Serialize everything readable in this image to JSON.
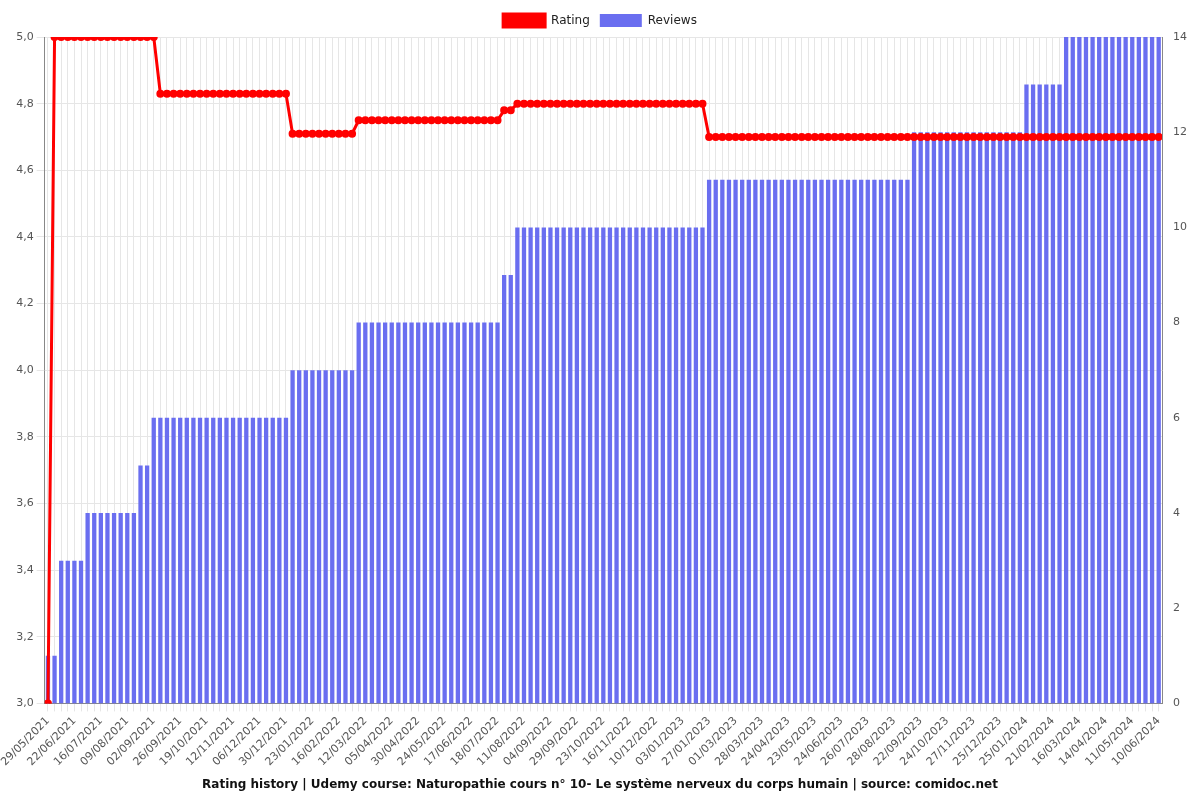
{
  "chart_data": {
    "type": "bar",
    "title": "Rating history | Udemy course: Naturopathie cours n° 10- Le système nerveux du corps humain | source: comidoc.net",
    "legend": "top",
    "grid": true,
    "categories": [
      "29/05/2021",
      null,
      null,
      null,
      "22/06/2021",
      null,
      null,
      null,
      "16/07/2021",
      null,
      null,
      null,
      "09/08/2021",
      null,
      null,
      null,
      "02/09/2021",
      null,
      null,
      null,
      "26/09/2021",
      null,
      null,
      null,
      "19/10/2021",
      null,
      null,
      null,
      "12/11/2021",
      null,
      null,
      null,
      "06/12/2021",
      null,
      null,
      null,
      "30/12/2021",
      null,
      null,
      null,
      "23/01/2022",
      null,
      null,
      null,
      "16/02/2022",
      null,
      null,
      null,
      "12/03/2022",
      null,
      null,
      null,
      "05/04/2022",
      null,
      null,
      null,
      "30/04/2022",
      null,
      null,
      null,
      "24/05/2022",
      null,
      null,
      null,
      "17/06/2022",
      null,
      null,
      null,
      "18/07/2022",
      null,
      null,
      null,
      "11/08/2022",
      null,
      null,
      null,
      "04/09/2022",
      null,
      null,
      null,
      "29/09/2022",
      null,
      null,
      null,
      "23/10/2022",
      null,
      null,
      null,
      "16/11/2022",
      null,
      null,
      null,
      "10/12/2022",
      null,
      null,
      null,
      "03/01/2023",
      null,
      null,
      null,
      "27/01/2023",
      null,
      null,
      null,
      "01/03/2023",
      null,
      null,
      null,
      "28/03/2023",
      null,
      null,
      null,
      "24/04/2023",
      null,
      null,
      null,
      "23/05/2023",
      null,
      null,
      null,
      "24/06/2023",
      null,
      null,
      null,
      "26/07/2023",
      null,
      null,
      null,
      "28/08/2023",
      null,
      null,
      null,
      "22/09/2023",
      null,
      null,
      null,
      "24/10/2023",
      null,
      null,
      null,
      "27/11/2023",
      null,
      null,
      null,
      "25/12/2023",
      null,
      null,
      null,
      "25/01/2024",
      null,
      null,
      null,
      "21/02/2024",
      null,
      null,
      null,
      "16/03/2024",
      null,
      null,
      null,
      "14/04/2024",
      null,
      null,
      null,
      "11/05/2024",
      null,
      null,
      null,
      "10/06/2024"
    ],
    "series": [
      {
        "name": "Rating",
        "type": "line",
        "color": "#ff0000",
        "marker": "circle",
        "values": [
          3.0,
          5,
          5,
          5,
          5,
          5,
          5,
          5,
          5,
          5,
          5,
          5,
          5,
          5,
          5,
          5,
          5,
          4.83,
          4.83,
          4.83,
          4.83,
          4.83,
          4.83,
          4.83,
          4.83,
          4.83,
          4.83,
          4.83,
          4.83,
          4.83,
          4.83,
          4.83,
          4.83,
          4.83,
          4.83,
          4.83,
          4.83,
          4.71,
          4.71,
          4.71,
          4.71,
          4.71,
          4.71,
          4.71,
          4.71,
          4.71,
          4.71,
          4.75,
          4.75,
          4.75,
          4.75,
          4.75,
          4.75,
          4.75,
          4.75,
          4.75,
          4.75,
          4.75,
          4.75,
          4.75,
          4.75,
          4.75,
          4.75,
          4.75,
          4.75,
          4.75,
          4.75,
          4.75,
          4.75,
          4.78,
          4.78,
          4.8,
          4.8,
          4.8,
          4.8,
          4.8,
          4.8,
          4.8,
          4.8,
          4.8,
          4.8,
          4.8,
          4.8,
          4.8,
          4.8,
          4.8,
          4.8,
          4.8,
          4.8,
          4.8,
          4.8,
          4.8,
          4.8,
          4.8,
          4.8,
          4.8,
          4.8,
          4.8,
          4.8,
          4.8,
          4.7,
          4.7,
          4.7,
          4.7,
          4.7,
          4.7,
          4.7,
          4.7,
          4.7,
          4.7,
          4.7,
          4.7,
          4.7,
          4.7,
          4.7,
          4.7,
          4.7,
          4.7,
          4.7,
          4.7,
          4.7,
          4.7,
          4.7,
          4.7,
          4.7,
          4.7,
          4.7,
          4.7,
          4.7,
          4.7,
          4.7,
          4.7,
          4.7,
          4.7,
          4.7,
          4.7,
          4.7,
          4.7,
          4.7,
          4.7,
          4.7,
          4.7,
          4.7,
          4.7,
          4.7,
          4.7,
          4.7,
          4.7,
          4.7,
          4.7,
          4.7,
          4.7,
          4.7,
          4.7,
          4.7,
          4.7,
          4.7,
          4.7,
          4.7,
          4.7,
          4.7,
          4.7,
          4.7,
          4.7,
          4.7,
          4.7,
          4.7,
          4.7,
          4.7
        ]
      },
      {
        "name": "Reviews",
        "type": "bar",
        "color": "#6a6ef0",
        "axis": "y2",
        "values": [
          1,
          1,
          3,
          3,
          3,
          3,
          4,
          4,
          4,
          4,
          4,
          4,
          4,
          4,
          5,
          5,
          6,
          6,
          6,
          6,
          6,
          6,
          6,
          6,
          6,
          6,
          6,
          6,
          6,
          6,
          6,
          6,
          6,
          6,
          6,
          6,
          6,
          7,
          7,
          7,
          7,
          7,
          7,
          7,
          7,
          7,
          7,
          8,
          8,
          8,
          8,
          8,
          8,
          8,
          8,
          8,
          8,
          8,
          8,
          8,
          8,
          8,
          8,
          8,
          8,
          8,
          8,
          8,
          8,
          9,
          9,
          10,
          10,
          10,
          10,
          10,
          10,
          10,
          10,
          10,
          10,
          10,
          10,
          10,
          10,
          10,
          10,
          10,
          10,
          10,
          10,
          10,
          10,
          10,
          10,
          10,
          10,
          10,
          10,
          10,
          11,
          11,
          11,
          11,
          11,
          11,
          11,
          11,
          11,
          11,
          11,
          11,
          11,
          11,
          11,
          11,
          11,
          11,
          11,
          11,
          11,
          11,
          11,
          11,
          11,
          11,
          11,
          11,
          11,
          11,
          11,
          12,
          12,
          12,
          12,
          12,
          12,
          12,
          12,
          12,
          12,
          12,
          12,
          12,
          12,
          12,
          12,
          12,
          13,
          13,
          13,
          13,
          13,
          13,
          14,
          14,
          14,
          14,
          14,
          14,
          14,
          14,
          14,
          14,
          14,
          14,
          14,
          14,
          14
        ]
      }
    ],
    "ylim": [
      3,
      5
    ],
    "yticks": [
      {
        "value": 3,
        "label": "3,0"
      },
      {
        "value": 3.2,
        "label": "3,2"
      },
      {
        "value": 3.4,
        "label": "3,4"
      },
      {
        "value": 3.6,
        "label": "3,6"
      },
      {
        "value": 3.8,
        "label": "3,8"
      },
      {
        "value": 4,
        "label": "4,0"
      },
      {
        "value": 4.2,
        "label": "4,2"
      },
      {
        "value": 4.4,
        "label": "4,4"
      },
      {
        "value": 4.6,
        "label": "4,6"
      },
      {
        "value": 4.8,
        "label": "4,8"
      },
      {
        "value": 5,
        "label": "5,0"
      }
    ],
    "y2lim": [
      0,
      14
    ],
    "y2ticks": [
      0,
      2,
      4,
      6,
      8,
      10,
      12,
      14
    ]
  }
}
